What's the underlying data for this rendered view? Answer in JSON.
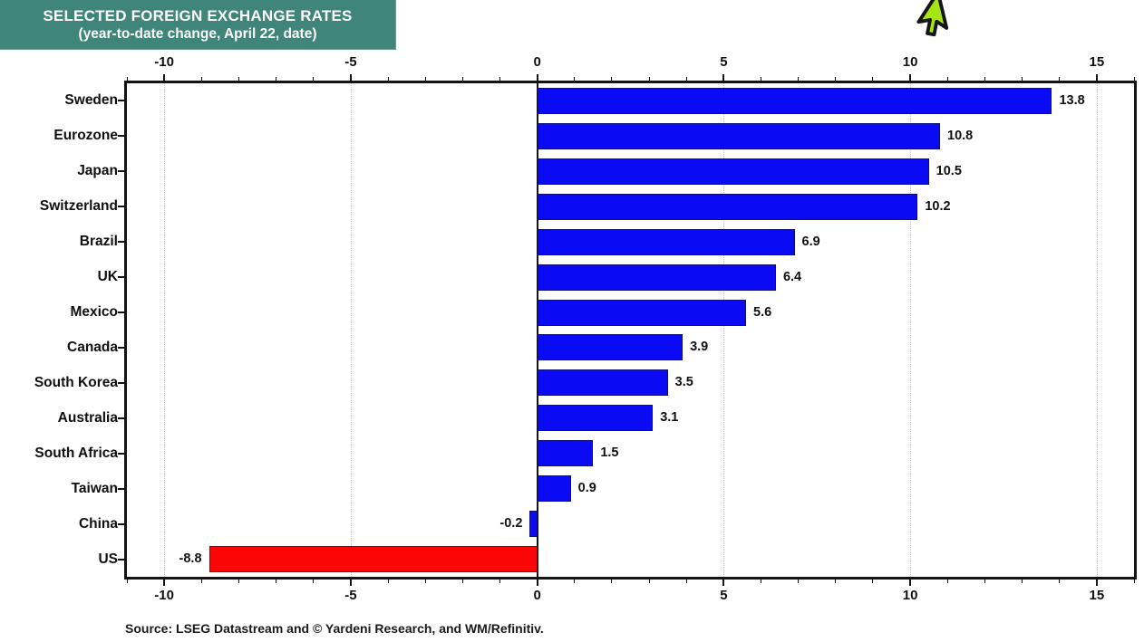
{
  "title": {
    "line1": "SELECTED FOREIGN EXCHANGE RATES",
    "line2": "(year-to-date change, April 22, date)",
    "bg_color": "#3F8579",
    "text_color": "#FFFFFF"
  },
  "source_note": "Source: LSEG Datastream and © Yardeni Research, and WM/Refinitiv.",
  "cursor": {
    "icon": "green-arrow-cursor",
    "fill": "#A6E513",
    "stroke": "#151515"
  },
  "chart_data": {
    "type": "bar",
    "orientation": "horizontal",
    "title": "SELECTED FOREIGN EXCHANGE RATES (year-to-date change, April 22, date)",
    "categories": [
      "Sweden",
      "Eurozone",
      "Japan",
      "Switzerland",
      "Brazil",
      "UK",
      "Mexico",
      "Canada",
      "South Korea",
      "Australia",
      "South Africa",
      "Taiwan",
      "China",
      "US"
    ],
    "values": [
      13.8,
      10.8,
      10.5,
      10.2,
      6.9,
      6.4,
      5.6,
      3.9,
      3.5,
      3.1,
      1.5,
      0.9,
      -0.2,
      -8.8
    ],
    "bar_colors": [
      "#0A0AF5",
      "#0A0AF5",
      "#0A0AF5",
      "#0A0AF5",
      "#0A0AF5",
      "#0A0AF5",
      "#0A0AF5",
      "#0A0AF5",
      "#0A0AF5",
      "#0A0AF5",
      "#0A0AF5",
      "#0A0AF5",
      "#0A0AF5",
      "#F90606"
    ],
    "positive_color": "#0A0AF5",
    "us_negative_color": "#F90606",
    "xlim": [
      -11,
      16
    ],
    "major_ticks": [
      -10,
      -5,
      0,
      5,
      10,
      15
    ],
    "tick_labels": [
      "-10",
      "-5",
      "0",
      "5",
      "10",
      "15"
    ],
    "minor_tick_step": 1,
    "grid": "dotted vertical gridlines at major ticks, solid black line at zero",
    "legend": "none",
    "value_labels": "one decimal, bold, outside bar end"
  }
}
